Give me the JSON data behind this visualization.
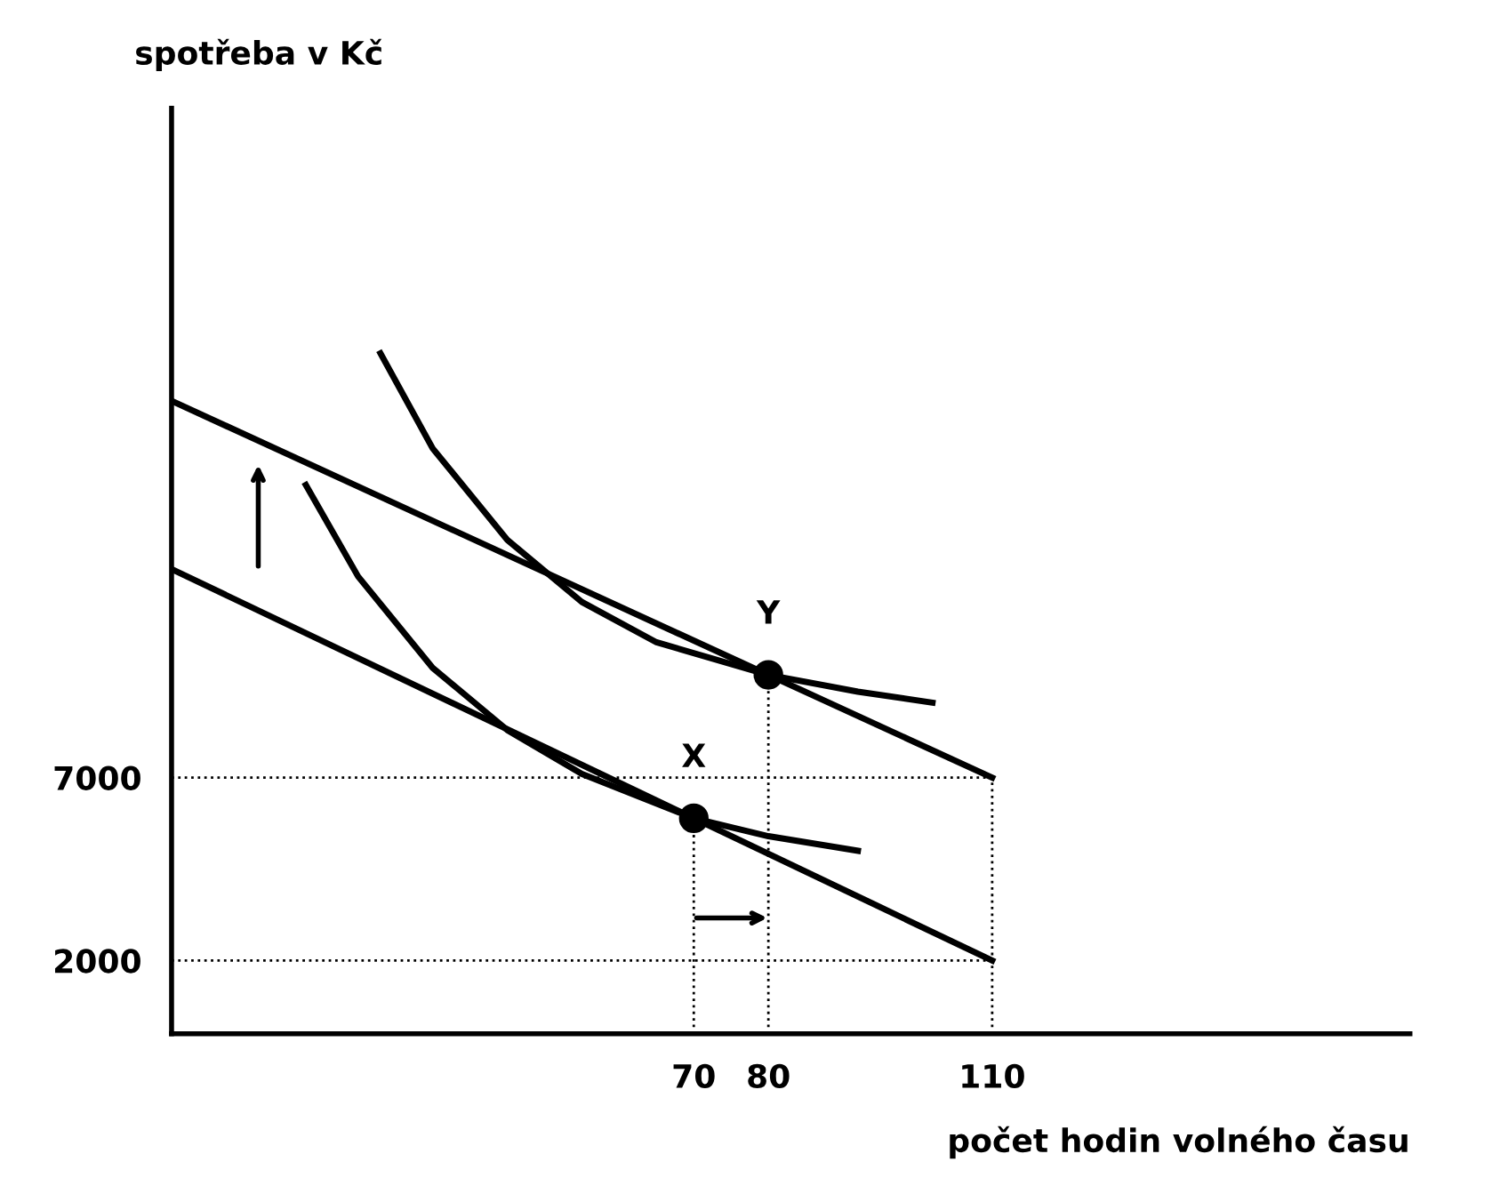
{
  "chart_data": {
    "type": "line",
    "xlabel": "počet hodin volného času",
    "ylabel": "spotřeba v Kč",
    "xlim": [
      0,
      166
    ],
    "ylim": [
      0,
      25300
    ],
    "xticks": [
      70,
      80,
      110
    ],
    "yticks": [
      2000,
      7000
    ],
    "grid": false,
    "legend": false,
    "series": [
      {
        "color": "#000000",
        "x": [
          0,
          110
        ],
        "values": [
          12700,
          2000
        ]
      },
      {
        "color": "#000000",
        "x": [
          0,
          110
        ],
        "values": [
          17300,
          7000
        ]
      },
      {
        "color": "#000000",
        "x": [
          18,
          25,
          35,
          45,
          55,
          70,
          80,
          92
        ],
        "values": [
          15000,
          12500,
          10000,
          8300,
          7100,
          5890,
          5400,
          5000
        ]
      },
      {
        "color": "#000000",
        "x": [
          28,
          35,
          45,
          55,
          65,
          80,
          92,
          102
        ],
        "values": [
          18600,
          16000,
          13500,
          11800,
          10700,
          9810,
          9350,
          9050
        ]
      },
      {
        "type": "scatter",
        "marker": "circle",
        "color": "#000000",
        "x": [
          70,
          80
        ],
        "values": [
          5890,
          9810
        ]
      },
      {
        "line_style": "dotted",
        "color": "#000000",
        "x": [
          0,
          110
        ],
        "values": [
          7000,
          7000
        ]
      },
      {
        "line_style": "dotted",
        "color": "#000000",
        "x": [
          0,
          110
        ],
        "values": [
          2000,
          2000
        ]
      },
      {
        "line_style": "dotted",
        "color": "#000000",
        "x": [
          110,
          110
        ],
        "values": [
          0,
          7000
        ]
      },
      {
        "line_style": "dotted",
        "color": "#000000",
        "x": [
          70,
          70
        ],
        "values": [
          0,
          5890
        ]
      },
      {
        "line_style": "dotted",
        "color": "#000000",
        "x": [
          80,
          80
        ],
        "values": [
          0,
          9810
        ]
      }
    ],
    "annotations": [
      {
        "text": "X",
        "x": 70,
        "y": 5890
      },
      {
        "text": "Y",
        "x": 80,
        "y": 9810
      }
    ]
  }
}
